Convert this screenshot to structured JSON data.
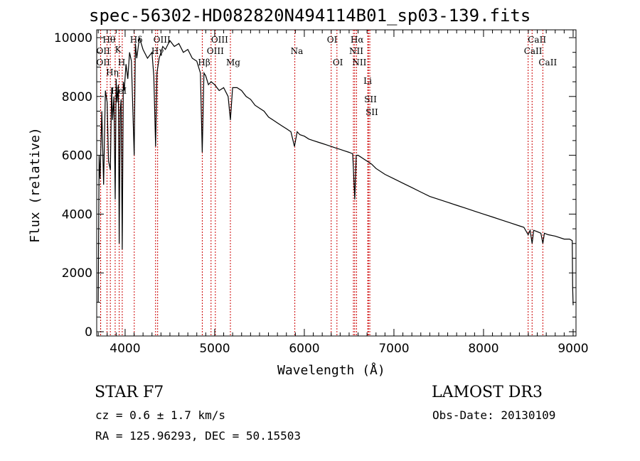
{
  "chart_data": {
    "type": "line",
    "title": "spec-56302-HD082820N494114B01_sp03-139.fits",
    "xlabel": "Wavelength (Å)",
    "ylabel": "Flux (relative)",
    "xlim": [
      3683,
      9032
    ],
    "ylim": [
      0,
      10200
    ],
    "xticks": [
      4000,
      5000,
      6000,
      7000,
      8000,
      9000
    ],
    "xtick_labels": [
      "4000",
      "5000",
      "6000",
      "7000",
      "8000",
      "9000"
    ],
    "yticks": [
      0,
      2000,
      4000,
      6000,
      8000,
      10000
    ],
    "ytick_labels": [
      "0",
      "2000",
      "4000",
      "6000",
      "8000",
      "10000"
    ],
    "series": [
      {
        "name": "spectrum",
        "color": "#000000",
        "x": [
          3700,
          3710,
          3720,
          3740,
          3760,
          3780,
          3800,
          3815,
          3835,
          3850,
          3860,
          3875,
          3889,
          3900,
          3910,
          3925,
          3934,
          3945,
          3955,
          3968,
          3980,
          3990,
          4010,
          4030,
          4050,
          4070,
          4101,
          4115,
          4130,
          4160,
          4200,
          4250,
          4300,
          4320,
          4340,
          4355,
          4380,
          4420,
          4450,
          4500,
          4550,
          4600,
          4650,
          4700,
          4750,
          4800,
          4840,
          4861,
          4880,
          4900,
          4930,
          4960,
          5000,
          5050,
          5100,
          5150,
          5175,
          5200,
          5250,
          5300,
          5350,
          5400,
          5450,
          5500,
          5550,
          5600,
          5650,
          5700,
          5750,
          5800,
          5850,
          5890,
          5920,
          5950,
          6000,
          6050,
          6100,
          6150,
          6200,
          6250,
          6300,
          6350,
          6400,
          6450,
          6500,
          6540,
          6563,
          6580,
          6600,
          6650,
          6700,
          6750,
          6800,
          6900,
          7000,
          7100,
          7200,
          7300,
          7400,
          7500,
          7600,
          7700,
          7800,
          7900,
          8000,
          8100,
          8200,
          8300,
          8400,
          8450,
          8498,
          8520,
          8542,
          8560,
          8600,
          8640,
          8662,
          8680,
          8720,
          8800,
          8900,
          8960,
          8990,
          8995,
          9000
        ],
        "y": [
          1000,
          6000,
          5200,
          7500,
          5000,
          8200,
          7800,
          5800,
          5500,
          8300,
          7200,
          8000,
          4500,
          8600,
          7800,
          8400,
          3000,
          7500,
          7900,
          2800,
          8500,
          8200,
          9100,
          8600,
          9500,
          9200,
          6000,
          9800,
          9300,
          10000,
          9600,
          9300,
          9500,
          8700,
          6300,
          8800,
          9300,
          9700,
          9600,
          9900,
          9700,
          9800,
          9500,
          9600,
          9300,
          9200,
          8800,
          6100,
          8800,
          8700,
          8400,
          8500,
          8400,
          8200,
          8300,
          8000,
          7200,
          8300,
          8300,
          8200,
          8000,
          7900,
          7700,
          7600,
          7500,
          7300,
          7200,
          7100,
          7000,
          6900,
          6800,
          6300,
          6800,
          6700,
          6650,
          6550,
          6500,
          6450,
          6400,
          6350,
          6300,
          6250,
          6200,
          6150,
          6100,
          6050,
          4500,
          6000,
          6000,
          5900,
          5800,
          5700,
          5550,
          5350,
          5200,
          5050,
          4900,
          4750,
          4600,
          4500,
          4400,
          4300,
          4200,
          4100,
          4000,
          3900,
          3800,
          3700,
          3600,
          3550,
          3300,
          3450,
          3000,
          3450,
          3400,
          3350,
          3000,
          3350,
          3300,
          3250,
          3150,
          3150,
          3100,
          1500,
          900
        ]
      }
    ],
    "lines": [
      {
        "label": "OII",
        "w": 3727,
        "row": 1
      },
      {
        "label": "OII",
        "w": 3727,
        "row": 2
      },
      {
        "label": "Hθ",
        "w": 3798,
        "row": 0
      },
      {
        "label": "Hη",
        "w": 3835,
        "row": 2
      },
      {
        "label": "HeI",
        "w": 3889,
        "row": 1
      },
      {
        "label": "K",
        "w": 3934,
        "row": 0
      },
      {
        "label": "H",
        "w": 3968,
        "row": 2
      },
      {
        "label": "Hδ",
        "w": 4102,
        "row": 0
      },
      {
        "label": "Hγ",
        "w": 4340,
        "row": 1
      },
      {
        "label": "OIII",
        "w": 4363,
        "row": 0
      },
      {
        "label": "Hβ",
        "w": 4861,
        "row": 2
      },
      {
        "label": "OIII",
        "w": 4959,
        "row": 1
      },
      {
        "label": "OIII",
        "w": 5007,
        "row": 0
      },
      {
        "label": "Mg",
        "w": 5175,
        "row": 2
      },
      {
        "label": "Na",
        "w": 5894,
        "row": 1
      },
      {
        "label": "OI",
        "w": 6300,
        "row": 0
      },
      {
        "label": "OI",
        "w": 6364,
        "row": 2
      },
      {
        "label": "NII",
        "w": 6548,
        "row": 1
      },
      {
        "label": "Hα",
        "w": 6563,
        "row": 0
      },
      {
        "label": "NII",
        "w": 6583,
        "row": 2
      },
      {
        "label": "Li",
        "w": 6708,
        "row": 1
      },
      {
        "label": "SII",
        "w": 6716,
        "row": 0
      },
      {
        "label": "SII",
        "w": 6731,
        "row": 2
      },
      {
        "label": "CaII",
        "w": 8498,
        "row": 1
      },
      {
        "label": "CaII",
        "w": 8542,
        "row": 0
      },
      {
        "label": "CaII",
        "w": 8662,
        "row": 2
      }
    ],
    "line_color": "#cc0000"
  },
  "info": {
    "class": "STAR    F7",
    "cz": "cz = 0.6 ± 1.7 km/s",
    "coords": "RA = 125.96293, DEC =  50.15503",
    "survey": "LAMOST DR3",
    "obsdate": "Obs-Date: 20130109"
  }
}
